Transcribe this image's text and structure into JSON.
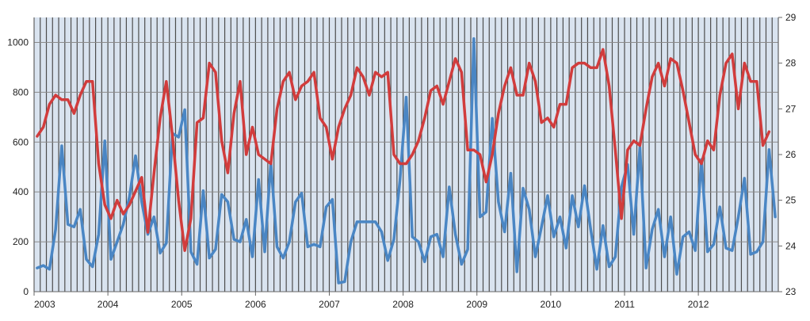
{
  "chart_data": {
    "type": "line",
    "x_labels": [
      "2003",
      "2004",
      "2005",
      "2006",
      "2007",
      "2008",
      "2009",
      "2010",
      "2011",
      "2012"
    ],
    "y_left": {
      "ticks": [
        "0",
        "200",
        "400",
        "600",
        "800",
        "1000"
      ],
      "range": [
        0,
        1100
      ]
    },
    "y_right": {
      "ticks": [
        "23",
        "24",
        "25",
        "26",
        "27",
        "28",
        "29"
      ],
      "range": [
        23,
        29
      ]
    },
    "grid": true,
    "series": [
      {
        "axis": "left",
        "color": "#4a86c4",
        "values": [
          95,
          105,
          90,
          250,
          585,
          270,
          260,
          330,
          130,
          100,
          230,
          605,
          130,
          200,
          270,
          380,
          545,
          360,
          230,
          300,
          155,
          195,
          635,
          620,
          730,
          160,
          110,
          405,
          135,
          170,
          390,
          360,
          210,
          200,
          290,
          140,
          450,
          160,
          520,
          180,
          135,
          200,
          360,
          395,
          180,
          190,
          180,
          340,
          370,
          35,
          40,
          200,
          280,
          280,
          280,
          280,
          240,
          125,
          210,
          450,
          780,
          220,
          200,
          120,
          220,
          230,
          140,
          420,
          230,
          110,
          170,
          1015,
          300,
          320,
          695,
          360,
          240,
          475,
          80,
          415,
          330,
          140,
          260,
          385,
          220,
          300,
          175,
          385,
          260,
          425,
          250,
          90,
          265,
          100,
          140,
          420,
          510,
          230,
          580,
          95,
          250,
          330,
          140,
          300,
          70,
          220,
          240,
          165,
          530,
          160,
          190,
          340,
          175,
          165,
          300,
          455,
          150,
          160,
          200,
          570,
          300
        ]
      },
      {
        "axis": "right",
        "color": "#d13c3c",
        "values": [
          26.4,
          26.6,
          27.1,
          27.3,
          27.2,
          27.2,
          26.9,
          27.3,
          27.6,
          27.6,
          25.8,
          24.9,
          24.6,
          25.0,
          24.7,
          24.9,
          25.2,
          25.5,
          24.3,
          25.6,
          26.8,
          27.6,
          26.4,
          25.0,
          23.9,
          24.6,
          26.7,
          26.8,
          28.0,
          27.8,
          26.3,
          25.6,
          26.9,
          27.6,
          26.0,
          26.6,
          26.0,
          25.9,
          25.8,
          27.0,
          27.6,
          27.8,
          27.2,
          27.5,
          27.6,
          27.8,
          26.8,
          26.6,
          25.9,
          26.6,
          27.0,
          27.3,
          27.9,
          27.7,
          27.3,
          27.8,
          27.7,
          27.8,
          26.0,
          25.8,
          25.8,
          26.0,
          26.3,
          26.8,
          27.4,
          27.5,
          27.1,
          27.6,
          28.1,
          27.8,
          26.1,
          26.1,
          26.0,
          25.4,
          26.0,
          26.9,
          27.5,
          27.9,
          27.3,
          27.3,
          28.0,
          27.6,
          26.7,
          26.8,
          26.6,
          27.1,
          27.1,
          27.9,
          28.0,
          28.0,
          27.9,
          27.9,
          28.3,
          27.5,
          26.1,
          24.6,
          26.1,
          26.3,
          26.2,
          27.0,
          27.7,
          28.0,
          27.5,
          28.1,
          28.0,
          27.4,
          26.7,
          26.0,
          25.8,
          26.3,
          26.1,
          27.3,
          28.0,
          28.2,
          27.0,
          28.0,
          27.6,
          27.6,
          26.2,
          26.5
        ]
      }
    ]
  }
}
